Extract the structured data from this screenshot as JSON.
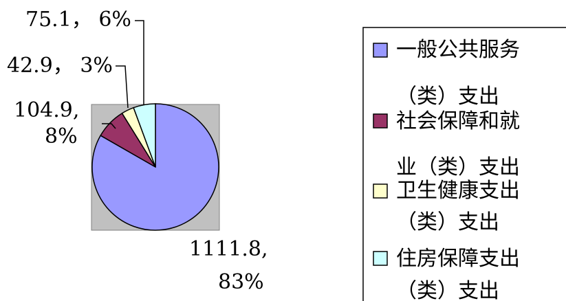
{
  "chart_data": {
    "type": "pie",
    "title": "",
    "legend_position": "right",
    "plot_background": "#c0c0c0",
    "slices": [
      {
        "name": "一般公共服务（类）支出",
        "legend_lines": [
          "一般公共服务",
          "（类）支出"
        ],
        "value": 1111.8,
        "percent": "83%",
        "value_label": "1111.8,",
        "percent_label": "83%",
        "color": "#9999ff"
      },
      {
        "name": "社会保障和就业（类）支出",
        "legend_lines": [
          "社会保障和就",
          "业（类）支出"
        ],
        "value": 104.9,
        "percent": "8%",
        "value_label": "104.9,",
        "percent_label": "8%",
        "color": "#993366"
      },
      {
        "name": "卫生健康支出（类）支出",
        "legend_lines": [
          "卫生健康支出",
          "（类）支出"
        ],
        "value": 42.9,
        "percent": "3%",
        "value_label": "42.9， 3%",
        "percent_label": "",
        "color": "#ffffcc"
      },
      {
        "name": "住房保障支出（类）支出",
        "legend_lines": [
          "住房保障支出",
          "（类）支出"
        ],
        "value": 75.1,
        "percent": "6%",
        "value_label": "75.1， 6%",
        "percent_label": "",
        "color": "#ccffff"
      }
    ]
  }
}
